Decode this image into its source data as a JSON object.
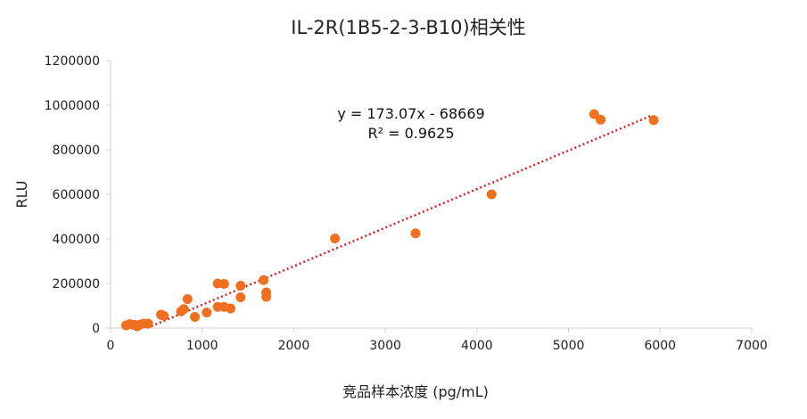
{
  "chart_data": {
    "type": "scatter",
    "title": "IL-2R(1B5-2-3-B10)相关性",
    "xlabel": "竞品样本浓度 (pg/mL)",
    "ylabel": "RLU",
    "xlim": [
      0,
      7000
    ],
    "ylim": [
      0,
      1200000
    ],
    "x_ticks": [
      "0",
      "1000",
      "2000",
      "3000",
      "4000",
      "5000",
      "6000",
      "7000"
    ],
    "y_ticks": [
      "0",
      "200000",
      "400000",
      "600000",
      "800000",
      "1000000",
      "1200000"
    ],
    "grid": false,
    "series": [
      {
        "marker_color": "#f07020",
        "points": [
          [
            170,
            12000
          ],
          [
            210,
            18000
          ],
          [
            250,
            15000
          ],
          [
            290,
            8000
          ],
          [
            320,
            15000
          ],
          [
            360,
            20000
          ],
          [
            410,
            20000
          ],
          [
            550,
            60000
          ],
          [
            580,
            55000
          ],
          [
            770,
            75000
          ],
          [
            800,
            85000
          ],
          [
            840,
            130000
          ],
          [
            920,
            50000
          ],
          [
            1050,
            70000
          ],
          [
            1170,
            95000
          ],
          [
            1240,
            95000
          ],
          [
            1310,
            88000
          ],
          [
            1170,
            200000
          ],
          [
            1240,
            198000
          ],
          [
            1420,
            190000
          ],
          [
            1420,
            138000
          ],
          [
            1670,
            215000
          ],
          [
            1700,
            160000
          ],
          [
            1700,
            140000
          ],
          [
            2450,
            402000
          ],
          [
            3330,
            425000
          ],
          [
            4160,
            600000
          ],
          [
            5280,
            960000
          ],
          [
            5350,
            935000
          ],
          [
            5930,
            933000
          ]
        ]
      }
    ],
    "trendline": {
      "type": "linear",
      "slope": 173.07,
      "intercept": -68669,
      "x_range": [
        400,
        5900
      ],
      "color": "#e02020",
      "style": "dotted",
      "equation_label": "y = 173.07x - 68669",
      "r2_label": "R² = 0.9625"
    }
  }
}
